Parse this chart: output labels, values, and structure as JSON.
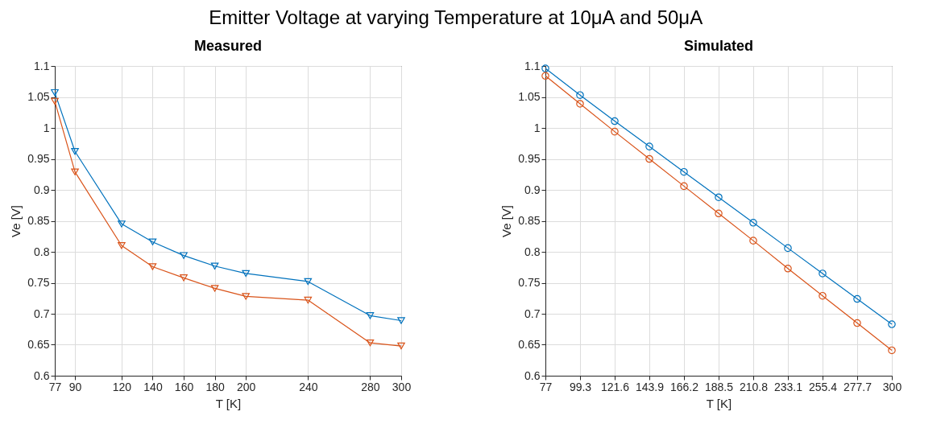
{
  "chart_data": [
    {
      "type": "line",
      "title": "Measured",
      "annotations": [
        "Emitter Voltage at varying Temperature at 10μA and 50μA"
      ],
      "xlabel": "T [K]",
      "ylabel": "Ve [V]",
      "marker": "triangle",
      "grid": true,
      "x": [
        77,
        90,
        120,
        140,
        160,
        180,
        200,
        240,
        280,
        300
      ],
      "xlim": [
        77,
        300
      ],
      "xticks": [
        77,
        90,
        120,
        140,
        160,
        180,
        200,
        240,
        280,
        300
      ],
      "ylim": [
        0.6,
        1.1
      ],
      "yticks": [
        0.6,
        0.65,
        0.7,
        0.75,
        0.8,
        0.85,
        0.9,
        0.95,
        1,
        1.05,
        1.1
      ],
      "series": [
        {
          "color": "#0072bd",
          "values": [
            1.057,
            0.962,
            0.845,
            0.816,
            0.794,
            0.777,
            0.765,
            0.752,
            0.697,
            0.689
          ]
        },
        {
          "color": "#d95319",
          "values": [
            1.043,
            0.929,
            0.81,
            0.776,
            0.758,
            0.741,
            0.728,
            0.722,
            0.653,
            0.648
          ]
        }
      ]
    },
    {
      "type": "line",
      "title": "Simulated",
      "xlabel": "T [K]",
      "ylabel": "Ve [V]",
      "marker": "circle",
      "grid": true,
      "x": [
        77,
        99.3,
        121.6,
        143.9,
        166.2,
        188.5,
        210.8,
        233.1,
        255.4,
        277.7,
        300
      ],
      "xlim": [
        77,
        300
      ],
      "xticks": [
        77,
        99.3,
        121.6,
        143.9,
        166.2,
        188.5,
        210.8,
        233.1,
        255.4,
        277.7,
        300
      ],
      "ylim": [
        0.6,
        1.1
      ],
      "yticks": [
        0.6,
        0.65,
        0.7,
        0.75,
        0.8,
        0.85,
        0.9,
        0.95,
        1,
        1.05,
        1.1
      ],
      "series": [
        {
          "color": "#0072bd",
          "values": [
            1.096,
            1.053,
            1.011,
            0.97,
            0.929,
            0.888,
            0.847,
            0.806,
            0.765,
            0.724,
            0.683
          ]
        },
        {
          "color": "#d95319",
          "values": [
            1.084,
            1.039,
            0.994,
            0.95,
            0.906,
            0.862,
            0.818,
            0.773,
            0.729,
            0.685,
            0.641
          ]
        }
      ]
    }
  ]
}
